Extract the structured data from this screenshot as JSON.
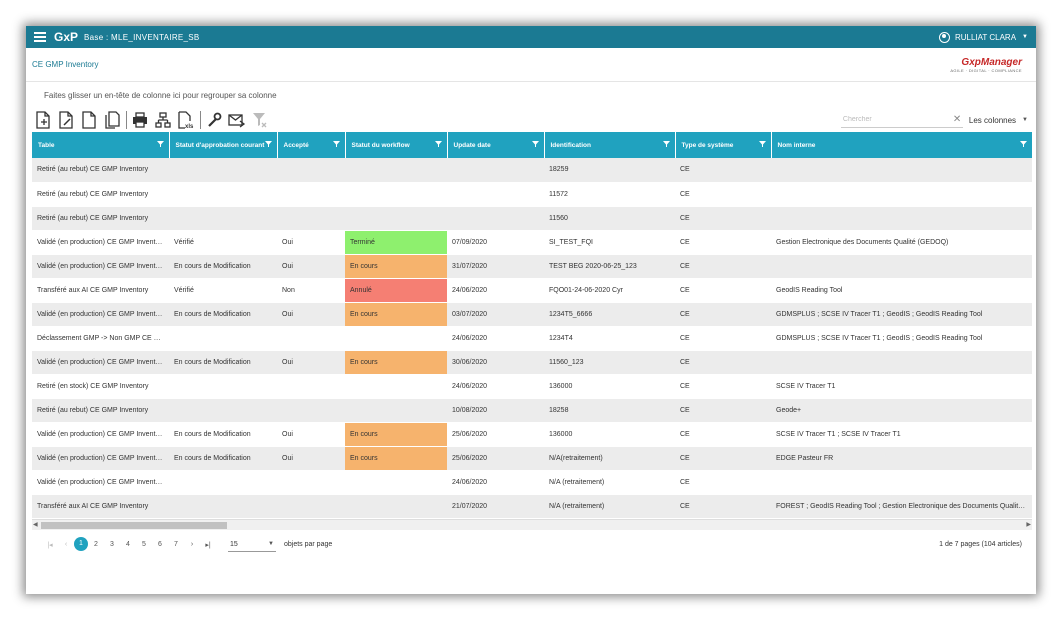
{
  "topbar": {
    "brand": "GxP",
    "base": "Base : MLE_INVENTAIRE_SB",
    "user": "RULLIAT CLARA"
  },
  "breadcrumb": "CE GMP Inventory",
  "logo": {
    "main": "GxpManager",
    "sub": "AGILE · DIGITAL · COMPLIANCE"
  },
  "group_hint": "Faites glisser un en-tête de colonne ici pour regrouper sa colonne",
  "search": {
    "placeholder": "Chercher",
    "columns_label": "Les colonnes"
  },
  "toolbar_icons": [
    "add-document-icon",
    "edit-document-icon",
    "document-icon",
    "copy-document-icon",
    "print-icon",
    "hierarchy-icon",
    "export-xls-icon",
    "wrench-icon",
    "mail-icon",
    "clear-filter-icon"
  ],
  "columns": [
    "Table",
    "Statut d'approbation courant",
    "Accepté",
    "Statut du workflow",
    "Update date",
    "Identification",
    "Type de système",
    "Nom interne"
  ],
  "rows": [
    [
      "Retiré (au rebut) CE GMP Inventory",
      "",
      "",
      "",
      "",
      "18259",
      "CE",
      ""
    ],
    [
      "Retiré (au rebut) CE GMP Inventory",
      "",
      "",
      "",
      "",
      "11572",
      "CE",
      ""
    ],
    [
      "Retiré (au rebut) CE GMP Inventory",
      "",
      "",
      "",
      "",
      "11560",
      "CE",
      ""
    ],
    [
      "Validé (en production) CE GMP Inventory",
      "Vérifié",
      "Oui",
      "Terminé",
      "07/09/2020",
      "SI_TEST_FQI",
      "CE",
      "Gestion Electronique des Documents Qualité (GEDOQ)"
    ],
    [
      "Validé (en production) CE GMP Inventory",
      "En cours de Modification",
      "Oui",
      "En cours",
      "31/07/2020",
      "TEST BEG 2020-06-25_123",
      "CE",
      ""
    ],
    [
      "Transféré aux AI CE GMP Inventory",
      "Vérifié",
      "Non",
      "Annulé",
      "24/06/2020",
      "FQO01-24-06-2020 Cyr",
      "CE",
      "GeodIS Reading Tool"
    ],
    [
      "Validé (en production) CE GMP Inventory",
      "En cours de Modification",
      "Oui",
      "En cours",
      "03/07/2020",
      "1234T5_6666",
      "CE",
      "GDMSPLUS ; SCSE IV Tracer T1 ; GeodIS ; GeodIS Reading Tool"
    ],
    [
      "Déclassement GMP -> Non GMP CE G...",
      "",
      "",
      "",
      "24/06/2020",
      "1234T4",
      "CE",
      "GDMSPLUS ; SCSE IV Tracer T1 ; GeodIS ; GeodIS Reading Tool"
    ],
    [
      "Validé (en production) CE GMP Inventory",
      "En cours de Modification",
      "Oui",
      "En cours",
      "30/06/2020",
      "11560_123",
      "CE",
      ""
    ],
    [
      "Retiré (en stock) CE GMP Inventory",
      "",
      "",
      "",
      "24/06/2020",
      "136000",
      "CE",
      "SCSE IV Tracer T1"
    ],
    [
      "Retiré (au rebut) CE GMP Inventory",
      "",
      "",
      "",
      "10/08/2020",
      "18258",
      "CE",
      "Geode+"
    ],
    [
      "Validé (en production) CE GMP Inventory",
      "En cours de Modification",
      "Oui",
      "En cours",
      "25/06/2020",
      "136000",
      "CE",
      "SCSE IV Tracer T1 ; SCSE IV Tracer T1"
    ],
    [
      "Validé (en production) CE GMP Inventory",
      "En cours de Modification",
      "Oui",
      "En cours",
      "25/06/2020",
      "N/A(retraitement)",
      "CE",
      "EDGE Pasteur FR"
    ],
    [
      "Validé (en production) CE GMP Inventory",
      "",
      "",
      "",
      "24/06/2020",
      "N/A (retraitement)",
      "CE",
      ""
    ],
    [
      "Transféré aux AI CE GMP Inventory",
      "",
      "",
      "",
      "21/07/2020",
      "N/A (retraitement)",
      "CE",
      "FOREST ; GeodIS Reading Tool ; Gestion Electronique des Documents Qualité (GE..."
    ]
  ],
  "workflow_colors": {
    "Terminé": "#8ef06e",
    "En cours": "#f6b36d",
    "Annulé": "#f57f73"
  },
  "pager": {
    "pages": [
      "1",
      "2",
      "3",
      "4",
      "5",
      "6",
      "7"
    ],
    "current": "1",
    "page_size": "15",
    "per_page_label": "objets par page",
    "info": "1 de 7 pages (104 articles)"
  }
}
